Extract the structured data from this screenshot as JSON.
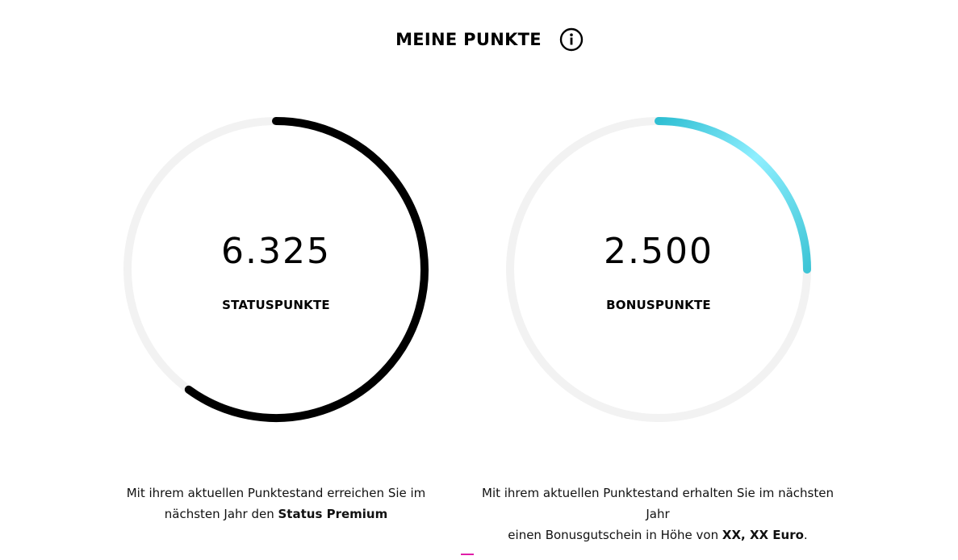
{
  "header": {
    "title": "MEINE PUNKTE",
    "info_icon": "info-icon"
  },
  "status_gauge": {
    "value": "6.325",
    "label": "STATUSPUNKTE",
    "progress_fraction": 0.6,
    "color": "#000000",
    "track_color": "#f2f2f2"
  },
  "bonus_gauge": {
    "value": "2.500",
    "label": "BONUSPUNKTE",
    "progress_fraction": 0.25,
    "gradient_start": "#2fbfd3",
    "gradient_mid": "#8fefff",
    "gradient_end": "#3ec5d6",
    "track_color": "#f2f2f2"
  },
  "status_description": {
    "line1": "Mit ihrem aktuellen Punktestand erreichen Sie im",
    "line2_prefix": "nächsten Jahr den ",
    "line2_bold": "Status Premium"
  },
  "bonus_description": {
    "line1": "Mit ihrem aktuellen Punktestand erhalten Sie im nächsten Jahr",
    "line2_prefix": "einen Bonusgutschein in Höhe von ",
    "line2_bold": "XX, XX Euro",
    "line2_suffix": "."
  },
  "accent_color": "#e01fa8"
}
